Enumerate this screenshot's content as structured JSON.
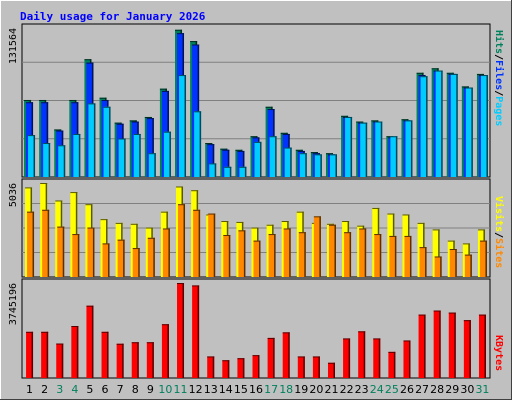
{
  "chart_data": {
    "type": "bar",
    "title": "Daily usage for January 2026",
    "categories": [
      "1",
      "2",
      "3",
      "4",
      "5",
      "6",
      "7",
      "8",
      "9",
      "10",
      "11",
      "12",
      "13",
      "14",
      "15",
      "16",
      "17",
      "18",
      "19",
      "20",
      "21",
      "22",
      "23",
      "24",
      "25",
      "26",
      "27",
      "28",
      "29",
      "30",
      "31"
    ],
    "weekend_days": [
      "3",
      "4",
      "10",
      "11",
      "17",
      "18",
      "24",
      "25",
      "31"
    ],
    "panels": [
      {
        "id": "pages-files-hits",
        "max_label": "131564",
        "ylim": [
          0,
          131564
        ],
        "grid": true,
        "series": [
          {
            "name": "Hits",
            "color": "#00805c",
            "values": [
              68000,
              68000,
              42000,
              68000,
              104000,
              70000,
              48000,
              50000,
              53000,
              78000,
              130000,
              120000,
              30000,
              25000,
              24000,
              36000,
              62000,
              39000,
              24000,
              22000,
              21000,
              54000,
              49000,
              50000,
              36000,
              51000,
              92000,
              96000,
              92000,
              80000,
              91000
            ]
          },
          {
            "name": "Files",
            "color": "#0033ff",
            "values": [
              66000,
              66000,
              41000,
              66000,
              101000,
              68000,
              47000,
              49000,
              52000,
              76000,
              127000,
              117000,
              29000,
              24000,
              23000,
              35000,
              60000,
              38000,
              23000,
              21000,
              20000,
              53000,
              48000,
              49000,
              35000,
              50000,
              90000,
              94000,
              91000,
              79000,
              90000
            ]
          },
          {
            "name": "Pages",
            "color": "#00ccff",
            "values": [
              37000,
              30000,
              28000,
              38000,
              65000,
              62000,
              34000,
              38000,
              21000,
              40000,
              90000,
              58000,
              12000,
              9000,
              9000,
              31000,
              36000,
              26000,
              21000,
              20000,
              20000,
              53000,
              48000,
              49000,
              36000,
              50000,
              89000,
              94000,
              91000,
              79000,
              90000
            ]
          }
        ]
      },
      {
        "id": "visits-sites",
        "max_label": "5036",
        "ylim": [
          0,
          5036
        ],
        "grid": true,
        "series": [
          {
            "name": "Visits",
            "color": "#ffff00",
            "values": [
              4800,
              5036,
              4100,
              4550,
              3900,
              3100,
              2900,
              2850,
              2650,
              3500,
              4850,
              4650,
              3350,
              3000,
              2950,
              2650,
              2800,
              3000,
              3500,
              2900,
              2850,
              3000,
              2750,
              3700,
              3400,
              3350,
              2900,
              2550,
              1950,
              1800,
              2550
            ]
          },
          {
            "name": "Sites",
            "color": "#ff8800",
            "values": [
              3500,
              3600,
              2700,
              2300,
              2650,
              1800,
              2000,
              1550,
              2100,
              2600,
              3900,
              3600,
              3400,
              2250,
              2500,
              1950,
              2300,
              2600,
              2400,
              3250,
              2800,
              2400,
              2600,
              2300,
              2200,
              2200,
              1600,
              1100,
              1500,
              1200,
              1950
            ]
          }
        ]
      },
      {
        "id": "kbytes",
        "max_label": "3745196",
        "ylim": [
          0,
          3745196
        ],
        "grid": false,
        "series": [
          {
            "name": "KBytes",
            "color": "#ff0000",
            "values": [
              1820000,
              1820000,
              1360000,
              2050000,
              2850000,
              1820000,
              1350000,
              1410000,
              1410000,
              2120000,
              3745196,
              3650000,
              850000,
              700000,
              780000,
              900000,
              1580000,
              1800000,
              850000,
              850000,
              600000,
              1560000,
              1840000,
              1560000,
              1030000,
              1480000,
              2500000,
              2660000,
              2580000,
              2280000,
              2500000
            ]
          }
        ]
      }
    ],
    "legend": {
      "top": [
        {
          "text": "Hits",
          "color": "#00805c"
        },
        {
          "text": "/",
          "color": "#000000"
        },
        {
          "text": "Files",
          "color": "#0033ff"
        },
        {
          "text": "/",
          "color": "#000000"
        },
        {
          "text": "Pages",
          "color": "#00ccff"
        }
      ],
      "mid": [
        {
          "text": "Visits",
          "color": "#ffff00"
        },
        {
          "text": "/",
          "color": "#000000"
        },
        {
          "text": "Sites",
          "color": "#ff8800"
        }
      ],
      "bottom": [
        {
          "text": "KBytes",
          "color": "#ff0000"
        }
      ]
    }
  },
  "colors": {
    "background": "#c0c0c0",
    "title": "#0000ff",
    "weekday_label": "#000000",
    "weekend_label": "#00805c",
    "grid": "#808080"
  }
}
